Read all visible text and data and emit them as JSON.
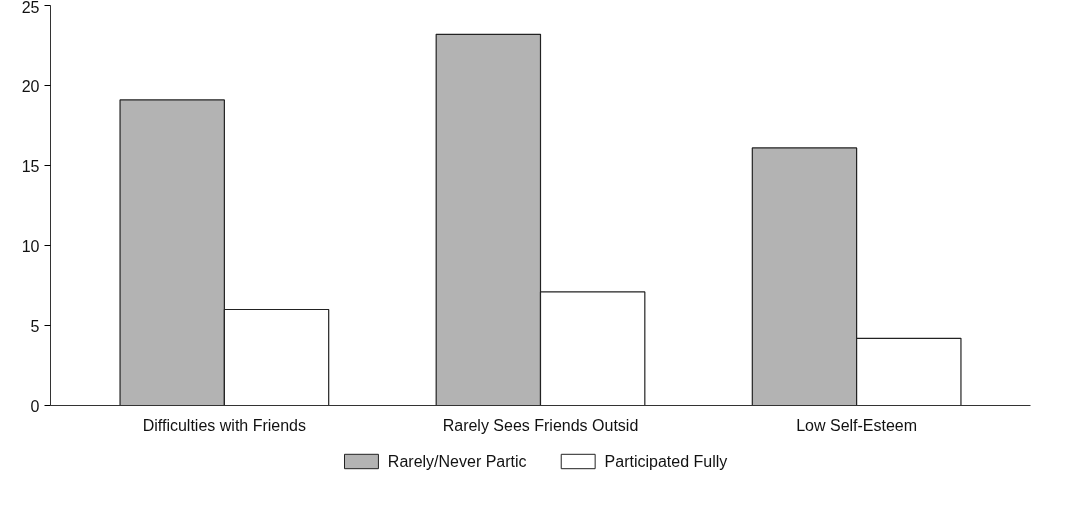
{
  "chart_data": {
    "type": "bar",
    "categories": [
      "Difficulties with Friends",
      "Rarely Sees Friends Outsid",
      "Low Self-Esteem"
    ],
    "series": [
      {
        "name": "Rarely/Never Partic",
        "color": "#b3b3b3",
        "values": [
          19.1,
          23.2,
          16.1
        ]
      },
      {
        "name": "Participated Fully",
        "color": "#ffffff",
        "values": [
          6.0,
          7.1,
          4.2
        ]
      }
    ],
    "ylim": [
      0,
      25
    ],
    "yticks": [
      0,
      5,
      10,
      15,
      20,
      25
    ],
    "grid": false,
    "legend": "bottom"
  }
}
